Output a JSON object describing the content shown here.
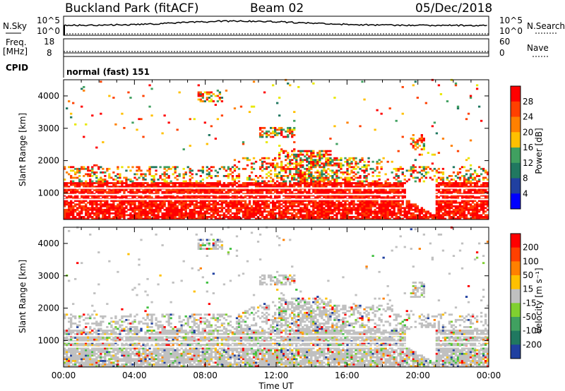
{
  "header": {
    "title": "Buckland Park (fitACF)",
    "beam": "Beam 02",
    "date": "05/Dec/2018"
  },
  "top_panels": {
    "nsky_label": "N.Sky",
    "nsky_ticks": [
      "10^5",
      "10^0"
    ],
    "nsearch_label": "N.Search",
    "nsearch_ticks": [
      "10^5",
      "10^0"
    ],
    "freq_label_1": "Freq.",
    "freq_label_2": "[MHz]",
    "freq_ticks": [
      "18",
      "8"
    ],
    "nave_label": "Nave",
    "nave_ticks": [
      "60",
      "0"
    ],
    "cpid_label": "CPID",
    "cpid_value": "normal (fast) 151"
  },
  "colors": {
    "red": "#ff0000",
    "orange_red": "#ff4000",
    "orange": "#ff8000",
    "gold": "#ffc000",
    "yellow": "#e8e800",
    "sea_green": "#40a060",
    "teal": "#207860",
    "navy": "#2040a0",
    "blue": "#0000ff",
    "light_green": "#80d030",
    "green": "#40c040",
    "grey": "#c0c0c0"
  },
  "chart_data": [
    {
      "type": "heatmap",
      "name": "power",
      "ylabel": "Slant Range [km]",
      "xlabel": "Time UT",
      "yticks": [
        "1000",
        "2000",
        "3000",
        "4000"
      ],
      "ylim": [
        180,
        4500
      ],
      "xlim": [
        0,
        24
      ],
      "colorbar_label": "Power [dB]",
      "colorbar_ticks": [
        "4",
        "8",
        "12",
        "16",
        "20",
        "24",
        "28"
      ],
      "colorbar_colors": [
        "#0000ff",
        "#2040a0",
        "#207860",
        "#40a060",
        "#ffc000",
        "#ff8000",
        "#ff4000",
        "#ff0000"
      ]
    },
    {
      "type": "heatmap",
      "name": "velocity",
      "ylabel": "Slant Range [km]",
      "xlabel": "Time UT",
      "yticks": [
        "1000",
        "2000",
        "3000",
        "4000"
      ],
      "ylim": [
        180,
        4500
      ],
      "xlim": [
        0,
        24
      ],
      "colorbar_label": "Velocity [m s⁻¹]",
      "colorbar_ticks": [
        "200",
        "100",
        "50",
        "15",
        "-15",
        "-50",
        "-100",
        "-200"
      ],
      "colorbar_colors": [
        "#2040a0",
        "#207860",
        "#40a060",
        "#80d030",
        "#c0c0c0",
        "#ffc000",
        "#ff8000",
        "#ff4000",
        "#ff0000"
      ]
    }
  ],
  "xticks": [
    "00:00",
    "04:00",
    "08:00",
    "12:00",
    "16:00",
    "20:00",
    "00:00"
  ],
  "xlabel": "Time UT"
}
